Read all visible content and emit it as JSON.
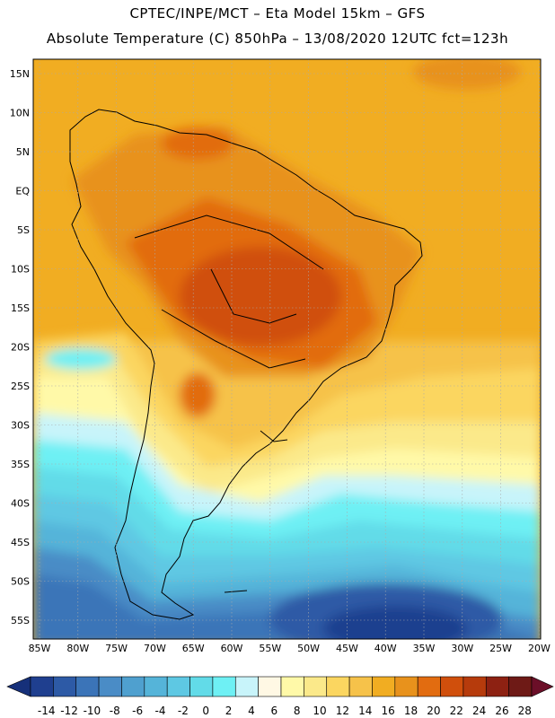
{
  "header": {
    "line1": "CPTEC/INPE/MCT –  Eta Model 15km – GFS",
    "line2": "Absolute Temperature (C) 850hPa – 13/08/2020 12UTC fct=123h"
  },
  "axes": {
    "lat_labels": [
      "15N",
      "10N",
      "5N",
      "EQ",
      "5S",
      "10S",
      "15S",
      "20S",
      "25S",
      "30S",
      "35S",
      "40S",
      "45S",
      "50S",
      "55S"
    ],
    "lon_labels": [
      "85W",
      "80W",
      "75W",
      "70W",
      "65W",
      "60W",
      "55W",
      "50W",
      "45W",
      "40W",
      "35W",
      "30W",
      "25W",
      "20W"
    ]
  },
  "colorbar": {
    "labels": [
      "-14",
      "-12",
      "-10",
      "-8",
      "-6",
      "-4",
      "-2",
      "0",
      "2",
      "4",
      "6",
      "8",
      "10",
      "12",
      "14",
      "16",
      "18",
      "20",
      "22",
      "24",
      "26",
      "28"
    ],
    "colors": [
      "#1f3f8f",
      "#2d5aa6",
      "#3b74b8",
      "#4a8cc6",
      "#4fa0cf",
      "#55b4d9",
      "#5ec8e3",
      "#62dbe8",
      "#6ef0f4",
      "#c8f4fa",
      "#fff8e4",
      "#fff9a8",
      "#fbe98a",
      "#fbd660",
      "#f6c24a",
      "#f1ad22",
      "#e8921c",
      "#e26c10",
      "#d04f0c",
      "#b63b0c",
      "#8d2112",
      "#6e1a16"
    ],
    "under_color": "#16307a",
    "over_color": "#6b0f28"
  }
}
